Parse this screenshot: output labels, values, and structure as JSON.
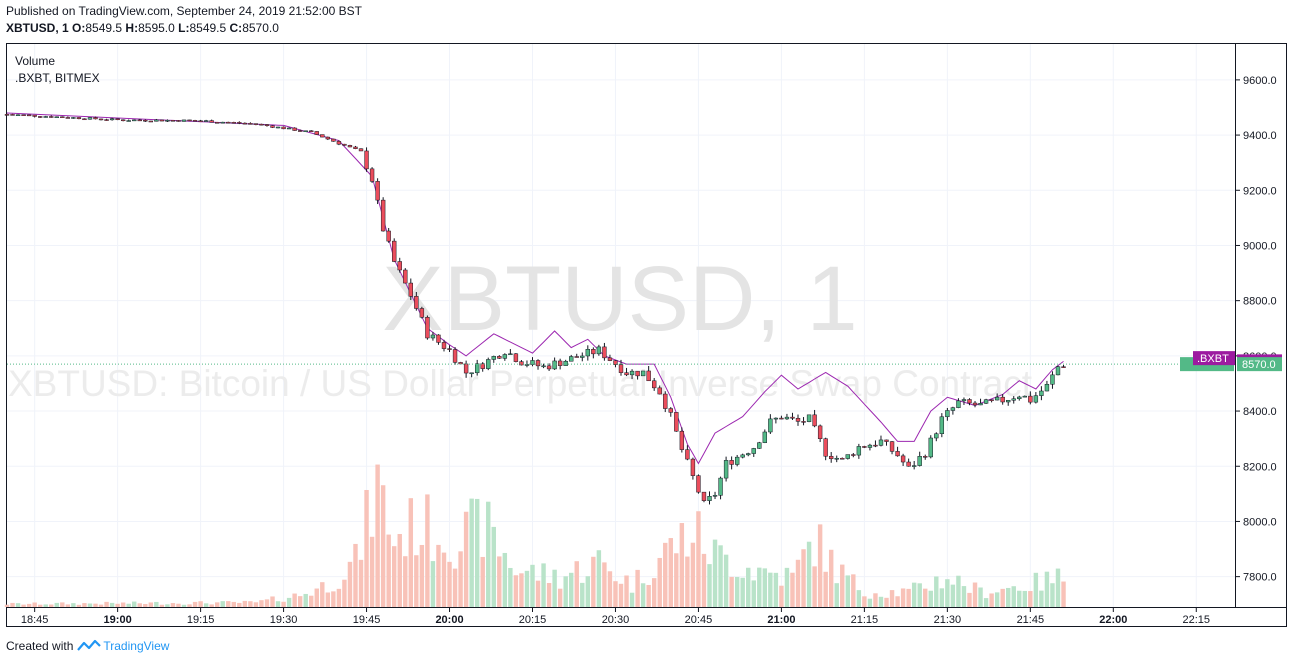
{
  "header": {
    "published": "Published on TradingView.com, September 24, 2019 21:52:00 BST",
    "symbol": "XBTUSD, 1",
    "o_label": "O:",
    "o": "8549.5",
    "h_label": "H:",
    "h": "8595.0",
    "l_label": "L:",
    "l": "8549.5",
    "c_label": "C:",
    "c": "8570.0"
  },
  "legend": {
    "volume": "Volume",
    "overlay": ".BXBT, BITMEX"
  },
  "watermark": {
    "big": "XBTUSD, 1",
    "desc": "XBTUSD: Bitcoin / US Dollar Perpetual Inverse Swap Contract"
  },
  "footer": {
    "created": "Created with",
    "brand": "TradingView"
  },
  "colors": {
    "up": "#26a69a",
    "down": "#ef5350",
    "up_body": "#53b987",
    "down_body": "#eb4d5c",
    "overlay_line": "#9c27b0",
    "vol_up": "#b9e3c9",
    "vol_down": "#f8c2b8",
    "price_tag": "#53b987",
    "overlay_tag": "#9c1aa0"
  },
  "chart_data": {
    "type": "candlestick",
    "title": "XBTUSD, 1",
    "y_ticks": [
      "9600.0",
      "9400.0",
      "9200.0",
      "9000.0",
      "8800.0",
      "8600.0",
      "8400.0",
      "8200.0",
      "8000.0",
      "7800.0"
    ],
    "ylim": [
      7690,
      9730
    ],
    "x_ticks": [
      {
        "label": "18:45",
        "bold": false
      },
      {
        "label": "19:00",
        "bold": true
      },
      {
        "label": "19:15",
        "bold": false
      },
      {
        "label": "19:30",
        "bold": false
      },
      {
        "label": "19:45",
        "bold": false
      },
      {
        "label": "20:00",
        "bold": true
      },
      {
        "label": "20:15",
        "bold": false
      },
      {
        "label": "20:30",
        "bold": false
      },
      {
        "label": "20:45",
        "bold": false
      },
      {
        "label": "21:00",
        "bold": true
      },
      {
        "label": "21:15",
        "bold": false
      },
      {
        "label": "21:30",
        "bold": false
      },
      {
        "label": "21:45",
        "bold": false
      },
      {
        "label": "22:00",
        "bold": true
      },
      {
        "label": "22:15",
        "bold": false
      }
    ],
    "x_start": "18:40",
    "x_end": "22:22",
    "last_price": "8570.0",
    "overlay_last": "8580.0",
    "overlay_tag_label": ".BXBT",
    "price_anchors": [
      [
        "18:40",
        9475
      ],
      [
        "19:00",
        9455
      ],
      [
        "19:15",
        9452
      ],
      [
        "19:25",
        9440
      ],
      [
        "19:35",
        9410
      ],
      [
        "19:40",
        9370
      ],
      [
        "19:44",
        9340
      ],
      [
        "19:46",
        9240
      ],
      [
        "19:48",
        9060
      ],
      [
        "19:50",
        8940
      ],
      [
        "19:53",
        8820
      ],
      [
        "19:56",
        8680
      ],
      [
        "20:00",
        8620
      ],
      [
        "20:03",
        8540
      ],
      [
        "20:06",
        8570
      ],
      [
        "20:10",
        8620
      ],
      [
        "20:13",
        8580
      ],
      [
        "20:17",
        8560
      ],
      [
        "20:22",
        8590
      ],
      [
        "20:27",
        8620
      ],
      [
        "20:32",
        8540
      ],
      [
        "20:35",
        8540
      ],
      [
        "20:38",
        8470
      ],
      [
        "20:40",
        8380
      ],
      [
        "20:42",
        8260
      ],
      [
        "20:44",
        8160
      ],
      [
        "20:46",
        8060
      ],
      [
        "20:48",
        8100
      ],
      [
        "20:50",
        8210
      ],
      [
        "20:55",
        8270
      ],
      [
        "20:58",
        8360
      ],
      [
        "21:00",
        8380
      ],
      [
        "21:03",
        8360
      ],
      [
        "21:05",
        8370
      ],
      [
        "21:08",
        8250
      ],
      [
        "21:11",
        8220
      ],
      [
        "21:14",
        8270
      ],
      [
        "21:18",
        8290
      ],
      [
        "21:21",
        8240
      ],
      [
        "21:23",
        8190
      ],
      [
        "21:26",
        8250
      ],
      [
        "21:29",
        8370
      ],
      [
        "21:32",
        8430
      ],
      [
        "21:36",
        8420
      ],
      [
        "21:40",
        8440
      ],
      [
        "21:43",
        8460
      ],
      [
        "21:45",
        8440
      ],
      [
        "21:48",
        8490
      ],
      [
        "21:50",
        8560
      ],
      [
        "21:51",
        8570
      ]
    ],
    "overlay_anchors": [
      [
        "18:40",
        9480
      ],
      [
        "19:30",
        9435
      ],
      [
        "19:40",
        9380
      ],
      [
        "19:46",
        9250
      ],
      [
        "19:50",
        8950
      ],
      [
        "19:56",
        8700
      ],
      [
        "20:00",
        8640
      ],
      [
        "20:03",
        8600
      ],
      [
        "20:08",
        8680
      ],
      [
        "20:12",
        8640
      ],
      [
        "20:15",
        8610
      ],
      [
        "20:19",
        8690
      ],
      [
        "20:22",
        8630
      ],
      [
        "20:25",
        8660
      ],
      [
        "20:28",
        8600
      ],
      [
        "20:32",
        8570
      ],
      [
        "20:37",
        8570
      ],
      [
        "20:40",
        8450
      ],
      [
        "20:43",
        8280
      ],
      [
        "20:45",
        8210
      ],
      [
        "20:48",
        8320
      ],
      [
        "20:53",
        8380
      ],
      [
        "20:57",
        8470
      ],
      [
        "21:00",
        8530
      ],
      [
        "21:03",
        8480
      ],
      [
        "21:08",
        8540
      ],
      [
        "21:12",
        8490
      ],
      [
        "21:18",
        8360
      ],
      [
        "21:21",
        8290
      ],
      [
        "21:24",
        8290
      ],
      [
        "21:27",
        8400
      ],
      [
        "21:30",
        8450
      ],
      [
        "21:35",
        8420
      ],
      [
        "21:40",
        8460
      ],
      [
        "21:43",
        8510
      ],
      [
        "21:46",
        8480
      ],
      [
        "21:49",
        8550
      ],
      [
        "21:51",
        8580
      ]
    ],
    "volume_anchors": [
      [
        "18:40",
        0.02
      ],
      [
        "19:25",
        0.03
      ],
      [
        "19:33",
        0.08
      ],
      [
        "19:38",
        0.15
      ],
      [
        "19:43",
        0.3
      ],
      [
        "19:47",
        0.8
      ],
      [
        "19:50",
        0.45
      ],
      [
        "19:54",
        0.55
      ],
      [
        "19:58",
        0.5
      ],
      [
        "20:02",
        0.45
      ],
      [
        "20:06",
        0.55
      ],
      [
        "20:12",
        0.25
      ],
      [
        "20:20",
        0.2
      ],
      [
        "20:27",
        0.3
      ],
      [
        "20:33",
        0.15
      ],
      [
        "20:40",
        0.4
      ],
      [
        "20:44",
        0.5
      ],
      [
        "20:48",
        0.35
      ],
      [
        "20:55",
        0.25
      ],
      [
        "21:02",
        0.2
      ],
      [
        "21:06",
        0.45
      ],
      [
        "21:10",
        0.25
      ],
      [
        "21:15",
        0.1
      ],
      [
        "21:23",
        0.1
      ],
      [
        "21:30",
        0.2
      ],
      [
        "21:36",
        0.1
      ],
      [
        "21:45",
        0.15
      ],
      [
        "21:51",
        0.2
      ]
    ]
  }
}
